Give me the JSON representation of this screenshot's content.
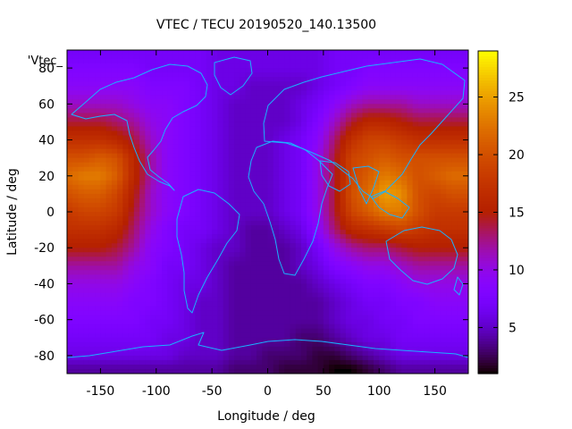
{
  "chart_data": {
    "type": "heatmap",
    "title": "VTEC / TECU 20190520_140.13500",
    "xlabel": "Longitude / deg",
    "ylabel": "Latitude / deg",
    "key_label": "'Vtec_",
    "xlim": [
      -180,
      180
    ],
    "ylim": [
      -90,
      90
    ],
    "x_ticks": [
      -150,
      -100,
      -50,
      0,
      50,
      100,
      150
    ],
    "y_ticks": [
      -80,
      -60,
      -40,
      -20,
      0,
      20,
      40,
      60,
      80
    ],
    "colorbar": {
      "range": [
        1,
        29
      ],
      "ticks": [
        5,
        10,
        15,
        20,
        25
      ]
    },
    "lon_grid": [
      -180,
      -165,
      -150,
      -135,
      -120,
      -105,
      -90,
      -75,
      -60,
      -45,
      -30,
      -15,
      0,
      15,
      30,
      45,
      60,
      75,
      90,
      105,
      120,
      135,
      150,
      165,
      180
    ],
    "lat_grid": [
      87.5,
      80,
      70,
      60,
      50,
      40,
      30,
      20,
      10,
      0,
      -10,
      -20,
      -30,
      -40,
      -50,
      -60,
      -70,
      -80,
      -87.5
    ],
    "values": [
      [
        7,
        7,
        7,
        7,
        7,
        7,
        7,
        7,
        7,
        6,
        6,
        6,
        6,
        6,
        6,
        6,
        7,
        7,
        7,
        7,
        7,
        7,
        7,
        7,
        7
      ],
      [
        8,
        8,
        8,
        8,
        8,
        7,
        7,
        7,
        7,
        6,
        6,
        6,
        6,
        6,
        6,
        6,
        7,
        7,
        8,
        8,
        8,
        8,
        8,
        8,
        8
      ],
      [
        9,
        9,
        9,
        9,
        9,
        8,
        8,
        8,
        7,
        6,
        6,
        5,
        5,
        5,
        5,
        6,
        7,
        8,
        9,
        9,
        9,
        9,
        9,
        9,
        9
      ],
      [
        11,
        11,
        11,
        11,
        10,
        9,
        9,
        8,
        7,
        6,
        5,
        5,
        5,
        5,
        6,
        7,
        9,
        11,
        12,
        12,
        12,
        11,
        11,
        11,
        11
      ],
      [
        14,
        14,
        14,
        13,
        12,
        10,
        9,
        8,
        7,
        6,
        5,
        5,
        5,
        5,
        6,
        8,
        11,
        14,
        16,
        16,
        15,
        14,
        14,
        14,
        14
      ],
      [
        17,
        17,
        17,
        16,
        14,
        11,
        9,
        8,
        7,
        6,
        5,
        5,
        5,
        6,
        7,
        9,
        13,
        17,
        19,
        19,
        18,
        17,
        17,
        17,
        17
      ],
      [
        20,
        20,
        21,
        20,
        16,
        12,
        9,
        8,
        7,
        6,
        5,
        5,
        5,
        6,
        7,
        10,
        14,
        19,
        20,
        21,
        20,
        20,
        20,
        20,
        20
      ],
      [
        22,
        23,
        23,
        21,
        16,
        12,
        9,
        8,
        7,
        6,
        5,
        5,
        5,
        6,
        7,
        10,
        14,
        19,
        21,
        23,
        22,
        20,
        21,
        22,
        22
      ],
      [
        20,
        21,
        21,
        19,
        15,
        11,
        9,
        8,
        7,
        6,
        5,
        5,
        5,
        6,
        7,
        10,
        14,
        20,
        22,
        25,
        24,
        20,
        19,
        20,
        20
      ],
      [
        18,
        19,
        19,
        18,
        14,
        11,
        9,
        8,
        7,
        6,
        5,
        5,
        5,
        6,
        7,
        10,
        14,
        19,
        21,
        23,
        23,
        20,
        18,
        18,
        18
      ],
      [
        17,
        17,
        17,
        16,
        13,
        10,
        8,
        7,
        7,
        6,
        5,
        4,
        4,
        5,
        6,
        9,
        13,
        16,
        17,
        18,
        19,
        18,
        17,
        17,
        17
      ],
      [
        15,
        15,
        15,
        14,
        12,
        9,
        8,
        7,
        6,
        5,
        5,
        4,
        4,
        4,
        5,
        7,
        10,
        12,
        13,
        13,
        14,
        15,
        15,
        15,
        15
      ],
      [
        12,
        12,
        12,
        12,
        10,
        9,
        7,
        7,
        6,
        5,
        4,
        4,
        4,
        4,
        5,
        6,
        8,
        9,
        10,
        10,
        11,
        12,
        12,
        12,
        12
      ],
      [
        10,
        10,
        10,
        10,
        9,
        8,
        7,
        6,
        6,
        5,
        4,
        4,
        4,
        4,
        4,
        5,
        6,
        7,
        8,
        8,
        9,
        10,
        10,
        10,
        10
      ],
      [
        9,
        9,
        9,
        9,
        8,
        8,
        7,
        6,
        5,
        5,
        4,
        4,
        4,
        4,
        4,
        4,
        5,
        6,
        7,
        7,
        8,
        8,
        9,
        9,
        9
      ],
      [
        8,
        8,
        8,
        8,
        8,
        7,
        7,
        6,
        5,
        5,
        4,
        4,
        4,
        4,
        4,
        4,
        5,
        6,
        6,
        7,
        7,
        8,
        8,
        8,
        8
      ],
      [
        7,
        7,
        7,
        7,
        7,
        7,
        6,
        6,
        5,
        5,
        4,
        4,
        4,
        4,
        3,
        3,
        4,
        5,
        6,
        6,
        7,
        7,
        7,
        7,
        7
      ],
      [
        6,
        6,
        6,
        6,
        6,
        6,
        6,
        5,
        5,
        5,
        4,
        4,
        3,
        3,
        3,
        2,
        2,
        3,
        4,
        5,
        6,
        6,
        6,
        6,
        6
      ],
      [
        4,
        4,
        4,
        4,
        4,
        4,
        4,
        4,
        4,
        4,
        3,
        3,
        3,
        2,
        2,
        2,
        1,
        1,
        2,
        3,
        4,
        4,
        4,
        4,
        4
      ]
    ]
  }
}
